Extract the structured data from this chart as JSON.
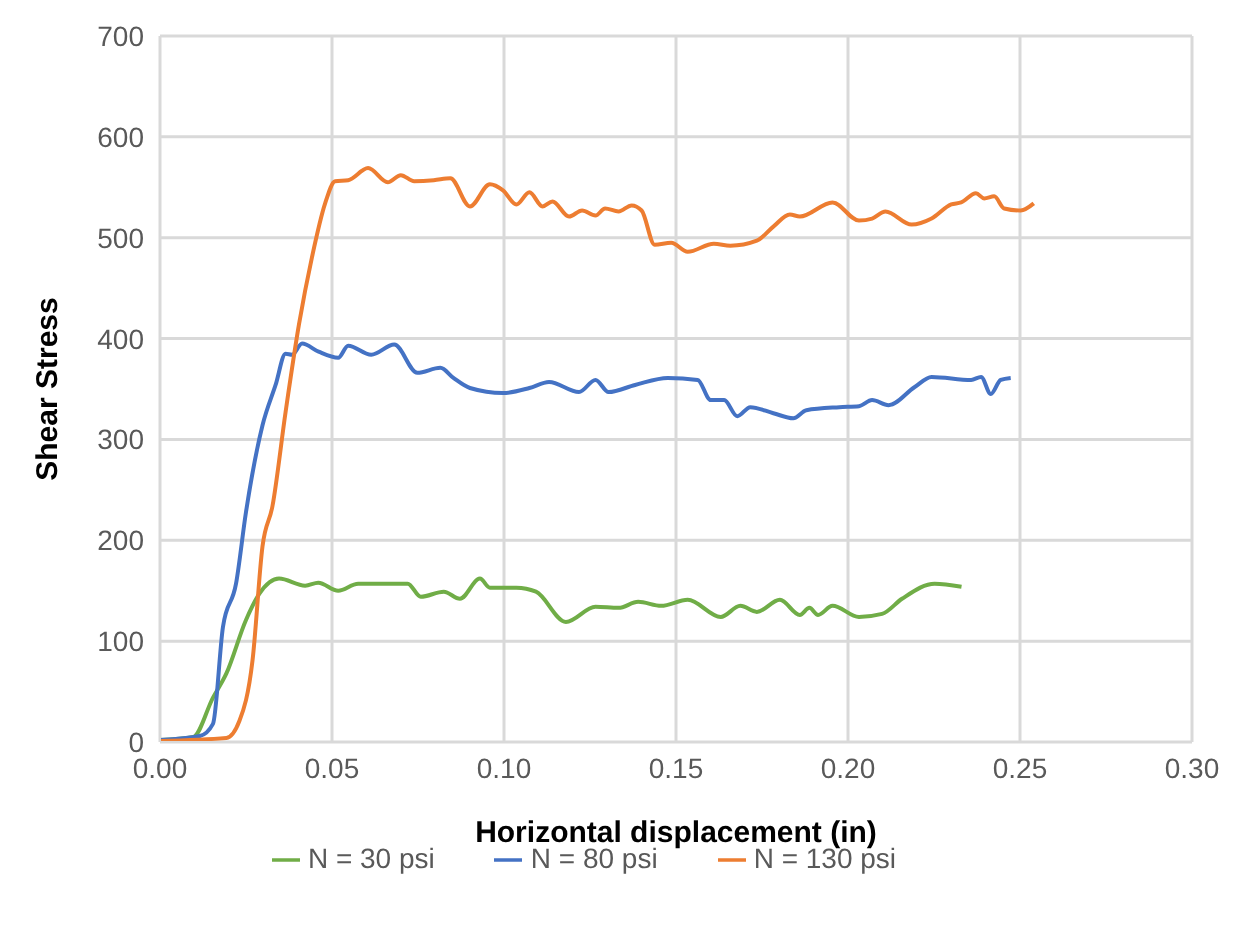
{
  "chart_data": {
    "type": "line",
    "xlabel": "Horizontal displacement (in)",
    "ylabel": "Shear Stress",
    "xlim": [
      0,
      0.3
    ],
    "xticks": [
      {
        "value": 0,
        "label": "0.00"
      },
      {
        "value": 0.05,
        "label": "0.05"
      },
      {
        "value": 0.1,
        "label": "0.10"
      },
      {
        "value": 0.15,
        "label": "0.15"
      },
      {
        "value": 0.2,
        "label": "0.20"
      },
      {
        "value": 0.25,
        "label": "0.25"
      },
      {
        "value": 0.3,
        "label": "0.30"
      }
    ],
    "ylim": [
      0,
      700
    ],
    "yticks": [
      0,
      100,
      200,
      300,
      400,
      500,
      600,
      700
    ],
    "grid": true,
    "legend": "bottom",
    "marker": "none",
    "line_style": "solid",
    "series": [
      {
        "name": "N = 30 psi",
        "color": "#70ad47",
        "x": [
          0,
          0.0097,
          0.0154,
          0.0193,
          0.025,
          0.0289,
          0.0346,
          0.0422,
          0.046,
          0.0518,
          0.0576,
          0.0633,
          0.072,
          0.0758,
          0.0825,
          0.0872,
          0.093,
          0.0959,
          0.1036,
          0.1093,
          0.118,
          0.1266,
          0.1333,
          0.139,
          0.1457,
          0.1534,
          0.163,
          0.1687,
          0.1735,
          0.1802,
          0.186,
          0.1888,
          0.1913,
          0.1955,
          0.2032,
          0.2099,
          0.2157,
          0.2252,
          0.233
        ],
        "values": [
          2,
          5,
          44,
          68,
          121,
          147,
          162,
          155,
          158,
          150,
          157,
          157,
          157,
          144,
          149,
          142,
          162,
          153,
          153,
          149,
          119,
          134,
          133,
          139,
          135,
          141,
          124,
          135,
          129,
          141,
          126,
          133,
          126,
          135,
          124,
          127,
          142,
          157,
          154
        ]
      },
      {
        "name": "N = 80 psi",
        "color": "#4472c4",
        "x": [
          0,
          0.0116,
          0.0154,
          0.0183,
          0.0221,
          0.025,
          0.0298,
          0.0336,
          0.0365,
          0.0384,
          0.0413,
          0.0461,
          0.0518,
          0.0547,
          0.0614,
          0.0681,
          0.0748,
          0.0815,
          0.0853,
          0.0901,
          0.0997,
          0.1074,
          0.1131,
          0.1218,
          0.1266,
          0.1304,
          0.1381,
          0.1476,
          0.1563,
          0.1601,
          0.164,
          0.1678,
          0.1716,
          0.1783,
          0.1841,
          0.1879,
          0.1975,
          0.2032,
          0.207,
          0.2118,
          0.2194,
          0.2243,
          0.2358,
          0.2387,
          0.2415,
          0.2444,
          0.2473
        ],
        "values": [
          2,
          6,
          18,
          114,
          157,
          228,
          314,
          354,
          385,
          384,
          395,
          387,
          381,
          393,
          384,
          394,
          366,
          371,
          361,
          351,
          346,
          351,
          357,
          347,
          359,
          347,
          354,
          361,
          359,
          339,
          339,
          323,
          332,
          326,
          321,
          329,
          332,
          333,
          339,
          334,
          352,
          362,
          359,
          362,
          345,
          359,
          361
        ]
      },
      {
        "name": "N = 130 psi",
        "color": "#ed7d31",
        "x": [
          0,
          0.0193,
          0.0231,
          0.0269,
          0.0298,
          0.0327,
          0.0365,
          0.0404,
          0.0442,
          0.048,
          0.0509,
          0.0547,
          0.0605,
          0.0662,
          0.07,
          0.0739,
          0.0796,
          0.0844,
          0.0901,
          0.0959,
          0.0997,
          0.1036,
          0.1074,
          0.1112,
          0.1141,
          0.1189,
          0.1227,
          0.1266,
          0.1294,
          0.1333,
          0.1371,
          0.14,
          0.1438,
          0.1486,
          0.1534,
          0.161,
          0.1658,
          0.1735,
          0.1783,
          0.1831,
          0.186,
          0.1955,
          0.2032,
          0.207,
          0.2109,
          0.2185,
          0.2243,
          0.23,
          0.2329,
          0.2372,
          0.2396,
          0.2425,
          0.2454,
          0.2502,
          0.254
        ],
        "values": [
          1,
          4,
          21,
          81,
          194,
          234,
          327,
          414,
          481,
          534,
          556,
          557,
          569,
          555,
          562,
          556,
          557,
          559,
          531,
          553,
          547,
          533,
          545,
          531,
          536,
          521,
          527,
          522,
          529,
          526,
          532,
          527,
          493,
          495,
          486,
          494,
          492,
          497,
          511,
          523,
          521,
          535,
          517,
          519,
          526,
          513,
          519,
          533,
          535,
          544,
          539,
          541,
          529,
          527,
          534
        ]
      }
    ]
  }
}
